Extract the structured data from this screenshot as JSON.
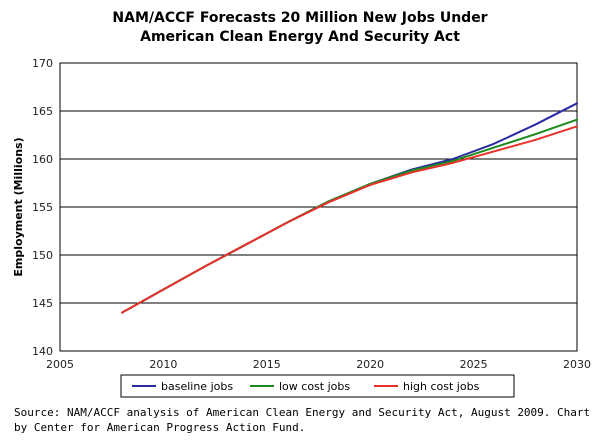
{
  "chart_data": {
    "type": "line",
    "title": "NAM/ACCF Forecasts 20 Million New Jobs Under",
    "title_line2": "American Clean Energy And Security Act",
    "xlabel": "",
    "ylabel": "Employment (Millions)",
    "xlim": [
      2005,
      2030
    ],
    "ylim": [
      140,
      170
    ],
    "x_ticks": [
      "2005",
      "2010",
      "2015",
      "2020",
      "2025",
      "2030"
    ],
    "y_ticks": [
      "140",
      "145",
      "150",
      "155",
      "160",
      "165",
      "170"
    ],
    "grid": "horizontal",
    "legend_position": "bottom",
    "series": [
      {
        "name": "baseline jobs",
        "color": "#2a2aa0",
        "x": [
          2008,
          2010,
          2012,
          2014,
          2016,
          2018,
          2020,
          2022,
          2024,
          2026,
          2028,
          2030
        ],
        "values": [
          144.0,
          146.4,
          148.8,
          151.1,
          153.4,
          155.6,
          157.4,
          158.9,
          160.0,
          161.6,
          163.6,
          165.8
        ]
      },
      {
        "name": "low cost jobs",
        "color": "#1e8a1e",
        "x": [
          2008,
          2010,
          2012,
          2014,
          2016,
          2018,
          2020,
          2022,
          2024,
          2026,
          2028,
          2030
        ],
        "values": [
          144.0,
          146.4,
          148.8,
          151.1,
          153.4,
          155.6,
          157.4,
          158.8,
          159.8,
          161.2,
          162.6,
          164.1
        ]
      },
      {
        "name": "high cost jobs",
        "color": "#e8312a",
        "x": [
          2008,
          2010,
          2012,
          2014,
          2016,
          2018,
          2020,
          2022,
          2024,
          2026,
          2028,
          2030
        ],
        "values": [
          144.0,
          146.4,
          148.8,
          151.1,
          153.4,
          155.5,
          157.3,
          158.6,
          159.6,
          160.8,
          162.0,
          163.4
        ]
      }
    ]
  },
  "footer": {
    "source_line1": "Source: NAM/ACCF analysis of American Clean Energy and Security Act, August 2009. Chart",
    "source_line2": "by Center for American Progress Action Fund."
  }
}
